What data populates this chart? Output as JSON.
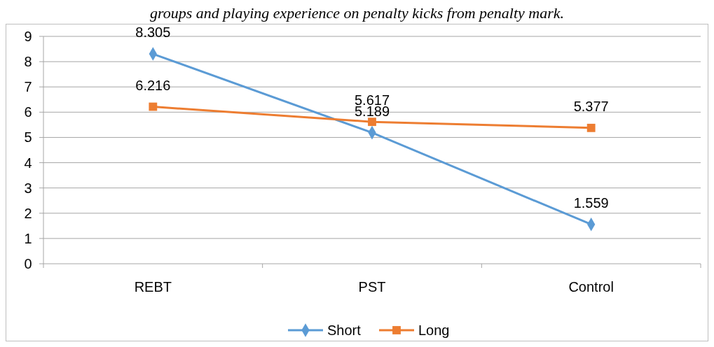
{
  "chart_data": {
    "type": "line",
    "annotations": [
      "groups and playing experience on penalty kicks from penalty mark."
    ],
    "categories": [
      "REBT",
      "PST",
      "Control"
    ],
    "series": [
      {
        "name": "Short",
        "color": "#5b9bd5",
        "marker": "diamond",
        "values": [
          8.305,
          5.189,
          1.559
        ]
      },
      {
        "name": "Long",
        "color": "#ed7d31",
        "marker": "square",
        "values": [
          6.216,
          5.617,
          5.377
        ]
      }
    ],
    "ylim": [
      0,
      9
    ],
    "yticks": [
      0,
      1,
      2,
      3,
      4,
      5,
      6,
      7,
      8,
      9
    ],
    "grid": "y",
    "legend": "bottom",
    "data_labels": true
  }
}
